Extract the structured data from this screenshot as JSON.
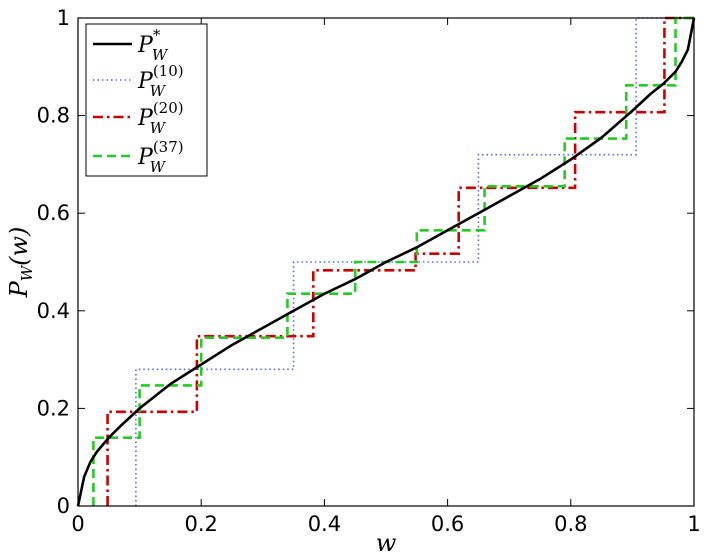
{
  "chart_data": {
    "type": "line",
    "xlabel": {
      "main": "w"
    },
    "ylabel": {
      "main": "P",
      "sub": "W",
      "rest": "(w)"
    },
    "xlim": [
      0,
      1
    ],
    "ylim": [
      0,
      1
    ],
    "xticks": [
      0,
      0.2,
      0.4,
      0.6,
      0.8,
      1
    ],
    "xtick_labels": [
      "0",
      "0.2",
      "0.4",
      "0.6",
      "0.8",
      "1"
    ],
    "yticks": [
      0,
      0.2,
      0.4,
      0.6,
      0.8,
      1
    ],
    "ytick_labels": [
      "0",
      "0.2",
      "0.4",
      "0.6",
      "0.8",
      "1"
    ],
    "grid": false,
    "legend_position": "top-left",
    "series": [
      {
        "name": "P_W^*",
        "legend": {
          "base": "P",
          "sub": "W",
          "sup": "*"
        },
        "color": "#000000",
        "style": "solid",
        "x": [
          0,
          0.01,
          0.02,
          0.03,
          0.05,
          0.07,
          0.1,
          0.15,
          0.2,
          0.25,
          0.3,
          0.35,
          0.4,
          0.45,
          0.5,
          0.55,
          0.6,
          0.65,
          0.7,
          0.75,
          0.8,
          0.85,
          0.9,
          0.93,
          0.95,
          0.97,
          0.98,
          0.99,
          1
        ],
        "y": [
          0,
          0.06,
          0.09,
          0.11,
          0.14,
          0.165,
          0.2,
          0.25,
          0.29,
          0.33,
          0.365,
          0.4,
          0.435,
          0.465,
          0.5,
          0.53,
          0.565,
          0.6,
          0.635,
          0.67,
          0.71,
          0.755,
          0.81,
          0.845,
          0.865,
          0.89,
          0.91,
          0.935,
          1
        ]
      },
      {
        "name": "P_W^(10)",
        "legend": {
          "base": "P",
          "sub": "W",
          "sup": "(10)"
        },
        "color": "#5566ee",
        "style": "dotted",
        "step": true,
        "x": [
          0.094,
          0.094,
          0.35,
          0.35,
          0.65,
          0.65,
          0.906,
          0.906,
          1
        ],
        "y": [
          0,
          0.28,
          0.28,
          0.5,
          0.5,
          0.72,
          0.72,
          1,
          1
        ]
      },
      {
        "name": "P_W^(20)",
        "legend": {
          "base": "P",
          "sub": "W",
          "sup": "(20)"
        },
        "color": "#cc0000",
        "style": "dashdot",
        "step": true,
        "x": [
          0.048,
          0.048,
          0.193,
          0.193,
          0.382,
          0.382,
          0.548,
          0.548,
          0.618,
          0.618,
          0.807,
          0.807,
          0.952,
          0.952,
          1
        ],
        "y": [
          0,
          0.193,
          0.193,
          0.348,
          0.348,
          0.483,
          0.483,
          0.517,
          0.517,
          0.652,
          0.652,
          0.807,
          0.807,
          1,
          1
        ]
      },
      {
        "name": "P_W^(37)",
        "legend": {
          "base": "P",
          "sub": "W",
          "sup": "(37)"
        },
        "color": "#22cc22",
        "style": "dashed",
        "step": true,
        "x": [
          0.025,
          0.025,
          0.1,
          0.1,
          0.2,
          0.2,
          0.34,
          0.34,
          0.45,
          0.45,
          0.55,
          0.55,
          0.66,
          0.66,
          0.79,
          0.79,
          0.89,
          0.89,
          0.97,
          0.97,
          1
        ],
        "y": [
          0,
          0.14,
          0.14,
          0.247,
          0.247,
          0.345,
          0.345,
          0.435,
          0.435,
          0.5,
          0.5,
          0.565,
          0.565,
          0.655,
          0.655,
          0.753,
          0.753,
          0.862,
          0.862,
          1,
          1
        ]
      }
    ]
  }
}
